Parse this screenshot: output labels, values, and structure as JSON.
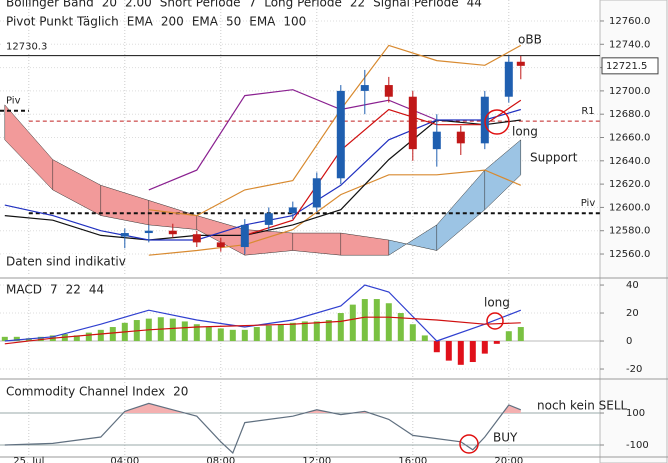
{
  "chart_data": [
    {
      "type": "candlestick",
      "header_line1": [
        "Bollinger Band",
        "20",
        "2.00",
        "Short Periode",
        "7",
        "Long Periode",
        "22",
        "Signal Periode",
        "44"
      ],
      "header_line2": [
        {
          "text": "Pivot Punkt Täglich",
          "color": "#333"
        },
        {
          "text": "EMA",
          "color": "#333"
        },
        {
          "text": "200",
          "color": "#8a2090"
        },
        {
          "text": "EMA",
          "color": "#333"
        },
        {
          "text": "50",
          "color": "#20808a"
        },
        {
          "text": "EMA",
          "color": "#333"
        },
        {
          "text": "100",
          "color": "#8a5a20"
        }
      ],
      "xlim": [
        -1.2,
        23.8
      ],
      "ylim": [
        12542,
        12778
      ],
      "yticks": [
        {
          "value": 12560,
          "label": "12560.0"
        },
        {
          "value": 12580,
          "label": "12580.0"
        },
        {
          "value": 12600,
          "label": "12600.0"
        },
        {
          "value": 12620,
          "label": "12620.0"
        },
        {
          "value": 12640,
          "label": "12640.0"
        },
        {
          "value": 12660,
          "label": "12660.0"
        },
        {
          "value": 12680,
          "label": "12680.0"
        },
        {
          "value": 12700,
          "label": "12700.0"
        },
        {
          "value": 12720,
          "label": "12720.0"
        },
        {
          "value": 12740,
          "label": "12740.0"
        },
        {
          "value": 12760,
          "label": "12760.0"
        }
      ],
      "x": [
        4,
        5,
        6,
        7,
        8,
        9,
        10,
        11,
        12,
        13,
        14,
        15,
        16,
        17,
        18,
        19,
        20,
        20.5
      ],
      "open": [
        12575,
        12578,
        12580,
        12577,
        12570,
        12566,
        12585,
        12595,
        12600,
        12625,
        12700,
        12705,
        12695,
        12650,
        12665,
        12655,
        12695,
        12725
      ],
      "high": [
        12582,
        12585,
        12586,
        12580,
        12574,
        12590,
        12600,
        12605,
        12630,
        12705,
        12718,
        12712,
        12700,
        12680,
        12670,
        12700,
        12730,
        12730
      ],
      "low": [
        12565,
        12570,
        12574,
        12566,
        12562,
        12560,
        12580,
        12590,
        12596,
        12620,
        12680,
        12690,
        12640,
        12635,
        12645,
        12650,
        12690,
        12710
      ],
      "close": [
        12578,
        12580,
        12577,
        12570,
        12566,
        12585,
        12595,
        12600,
        12625,
        12700,
        12705,
        12695,
        12650,
        12665,
        12655,
        12695,
        12725,
        12721.5
      ],
      "up_color": "#1f5fb0",
      "down_color": "#c01818",
      "lines": {
        "x": [
          -1,
          1,
          3,
          5,
          7,
          9,
          11,
          13,
          15,
          17,
          19,
          20.5
        ],
        "series": [
          {
            "color": "#8a2090",
            "values": [
              null,
              null,
              null,
              12615,
              12632,
              12696,
              12701,
              12684,
              12692,
              12675,
              null,
              null
            ]
          },
          {
            "color": "#d88a30",
            "values": [
              null,
              null,
              null,
              12598,
              12593,
              12615,
              12623,
              12684,
              12739,
              12726,
              12722,
              12739
            ]
          },
          {
            "color": "#d88a30",
            "values": [
              null,
              null,
              null,
              12559,
              12563,
              12568,
              12581,
              12611,
              12628,
              12628,
              12632,
              12619
            ]
          },
          {
            "color": "#111111",
            "values": [
              12593,
              12589,
              12576,
              12572,
              12576,
              12576,
              12585,
              12598,
              12641,
              12675,
              12671,
              12675
            ]
          },
          {
            "color": "#2030c0",
            "values": [
              12602,
              12593,
              12580,
              12572,
              12572,
              12585,
              12593,
              12619,
              12658,
              12675,
              12675,
              12684
            ]
          },
          {
            "color": "#d01010",
            "values": [
              null,
              null,
              null,
              null,
              null,
              12576,
              12589,
              12649,
              12684,
              12671,
              12671,
              12692
            ]
          }
        ]
      },
      "cloud": {
        "a": [
          12688,
          12641,
          12619,
          12606,
          12593,
          12581,
          12578,
          12578,
          12572,
          12563,
          12598,
          12628
        ],
        "b": [
          12658,
          12615,
          12593,
          12585,
          12581,
          12559,
          12563,
          12559,
          12559,
          12585,
          12632,
          12658
        ],
        "color_a_above": "#f29a9a",
        "color_b_above": "#9cc4e4"
      },
      "levels": [
        {
          "label": "Piv",
          "value": 12683,
          "color": "#111111",
          "xrange": [
            -1.2,
            0
          ]
        },
        {
          "label": "R1",
          "value": 12674,
          "color": "#c02020",
          "xrange": [
            0,
            23.8
          ]
        },
        {
          "label": "Piv",
          "value": 12595,
          "color": "#111111",
          "xrange": [
            0,
            23.8
          ]
        }
      ],
      "ref_line": 12730.3,
      "last_price": 12721.5,
      "annotations": [
        "oBB",
        "long",
        "Support",
        "Daten sind indikativ"
      ]
    },
    {
      "type": "macd",
      "title": [
        {
          "text": "MACD",
          "color": "#333"
        },
        {
          "text": "7",
          "color": "#c02020"
        },
        {
          "text": "22",
          "color": "#c02020"
        },
        {
          "text": "44",
          "color": "#c02020"
        }
      ],
      "xlim": [
        -1.2,
        23.8
      ],
      "ylim": [
        -25.7,
        43.6
      ],
      "yticks": [
        40,
        20,
        0,
        -20
      ],
      "x": [
        -1,
        -0.5,
        0,
        0.5,
        1,
        1.5,
        2,
        2.5,
        3,
        3.5,
        4,
        4.5,
        5,
        5.5,
        6,
        6.5,
        7,
        7.5,
        8,
        8.5,
        9,
        9.5,
        10,
        10.5,
        11,
        11.5,
        12,
        12.5,
        13,
        13.5,
        14,
        14.5,
        15,
        15.5,
        16,
        16.5,
        17,
        17.5,
        18,
        18.5,
        19,
        19.5,
        20,
        20.5
      ],
      "values": [
        3,
        3,
        2,
        3,
        4,
        5,
        4,
        6,
        8,
        10,
        13,
        15,
        16,
        17,
        16,
        14,
        12,
        10,
        9,
        8,
        8,
        10,
        11,
        12,
        13,
        14,
        14,
        15,
        20,
        26,
        30,
        30,
        27,
        20,
        12,
        4,
        -8,
        -14,
        -17,
        -15,
        -9,
        -2,
        7,
        10
      ],
      "pos_color": "#7ac142",
      "neg_color": "#e0101a",
      "lines": {
        "x": [
          -1,
          1,
          3,
          5,
          7,
          9,
          11,
          13,
          14,
          15,
          17,
          19,
          20.5
        ],
        "series": [
          {
            "color": "#3040d0",
            "values": [
              0,
              3,
              12,
              22,
              15,
              10,
              15,
              25,
              40,
              35,
              0,
              12,
              22
            ]
          },
          {
            "color": "#d01010",
            "values": [
              -2,
              2,
              5,
              8,
              10,
              11,
              12,
              14,
              17,
              17,
              15,
              12,
              13
            ]
          }
        ]
      },
      "annotations": [
        "long"
      ]
    },
    {
      "type": "cci",
      "title": [
        {
          "text": "Commodity Channel Index",
          "color": "#333"
        },
        {
          "text": "20",
          "color": "#333"
        }
      ],
      "xlim": [
        -1.2,
        23.8
      ],
      "ylim": [
        -175,
        294
      ],
      "yticks": [
        100,
        -100
      ],
      "fill_above": 100,
      "fill_color": "#f4b0b0",
      "color": "#607080",
      "x": [
        -1,
        1,
        3,
        4,
        5,
        6,
        7,
        8,
        8.5,
        9,
        10,
        11,
        12,
        13,
        14,
        15,
        16,
        17,
        18,
        18.5,
        19,
        19.5,
        20,
        20.5
      ],
      "values": [
        -100,
        -90,
        -50,
        110,
        160,
        120,
        80,
        -80,
        -150,
        40,
        60,
        80,
        120,
        90,
        110,
        60,
        -40,
        -60,
        -80,
        -130,
        -50,
        50,
        150,
        120
      ],
      "xticks": [
        {
          "value": 0,
          "label": "25. Jul"
        },
        {
          "value": 4,
          "label": "04:00"
        },
        {
          "value": 8,
          "label": "08:00"
        },
        {
          "value": 12,
          "label": "12:00"
        },
        {
          "value": 16,
          "label": "16:00"
        },
        {
          "value": 20,
          "label": "20:00"
        }
      ],
      "annotations": [
        "noch kein SELL",
        "BUY"
      ]
    }
  ]
}
